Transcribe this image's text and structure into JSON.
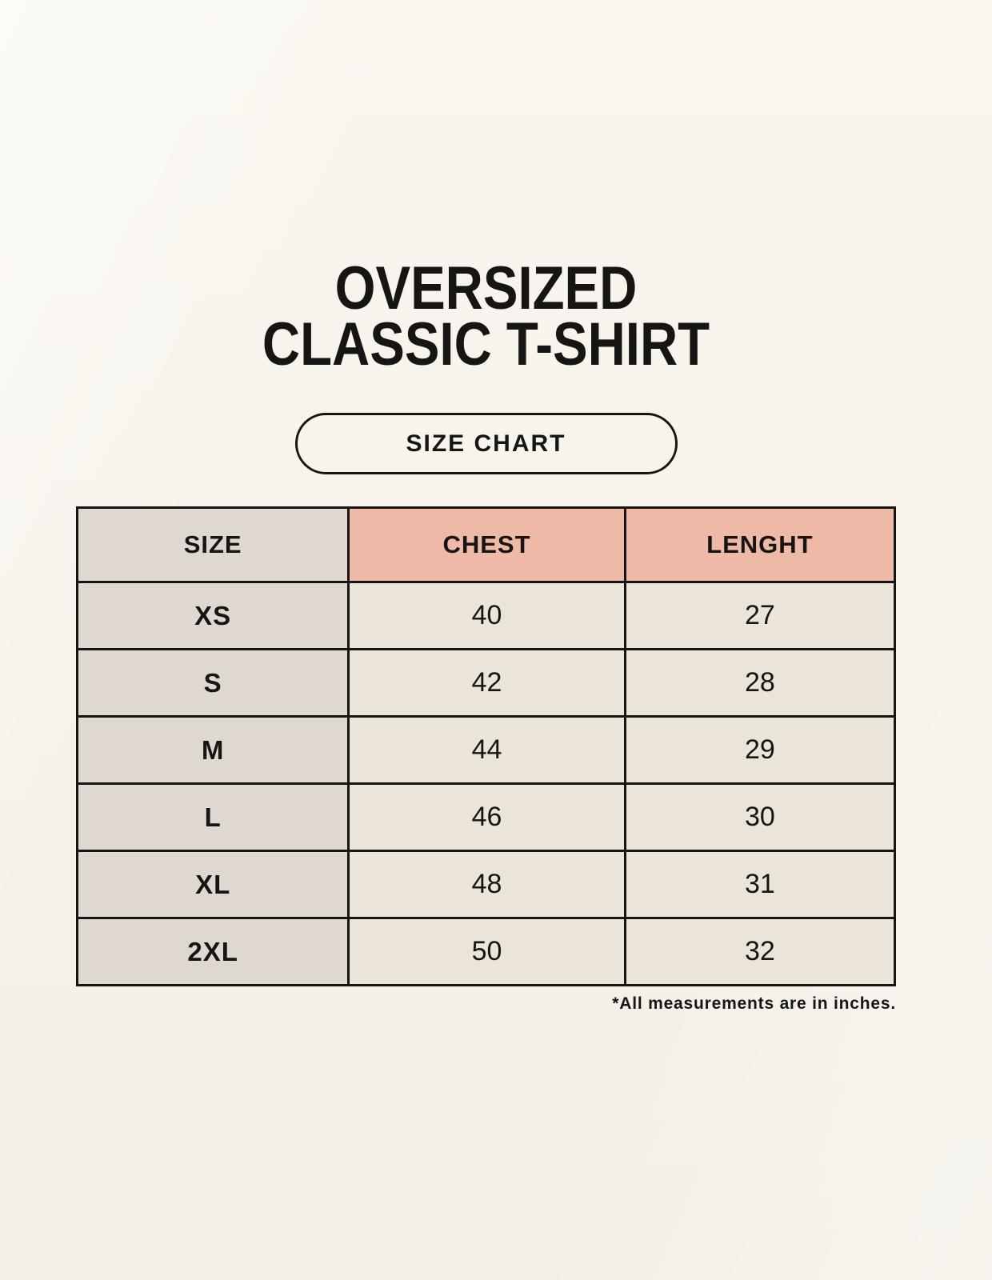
{
  "header": {
    "title_line1": "OVERSIZED",
    "title_line2": "CLASSIC T-SHIRT",
    "button_label": "SIZE CHART"
  },
  "footnote": "*All measurements are in inches.",
  "colors": {
    "background": "#f9f6ef",
    "header_size_bg": "#ded8d1",
    "header_measure_bg": "#efb9a8",
    "row_label_bg": "#ded8d1",
    "row_value_bg": "#eae4d9",
    "border": "#171513",
    "text": "#171513"
  },
  "chart_data": {
    "type": "table",
    "title": "OVERSIZED CLASSIC T-SHIRT",
    "columns": [
      "SIZE",
      "CHEST",
      "LENGHT"
    ],
    "rows": [
      {
        "size": "XS",
        "chest": "40",
        "length": "27"
      },
      {
        "size": "S",
        "chest": "42",
        "length": "28"
      },
      {
        "size": "M",
        "chest": "44",
        "length": "29"
      },
      {
        "size": "L",
        "chest": "46",
        "length": "30"
      },
      {
        "size": "XL",
        "chest": "48",
        "length": "31"
      },
      {
        "size": "2XL",
        "chest": "50",
        "length": "32"
      }
    ],
    "units_note": "*All measurements are in inches.",
    "layout": "3 equal columns, header row + 6 data rows, black grid borders"
  }
}
